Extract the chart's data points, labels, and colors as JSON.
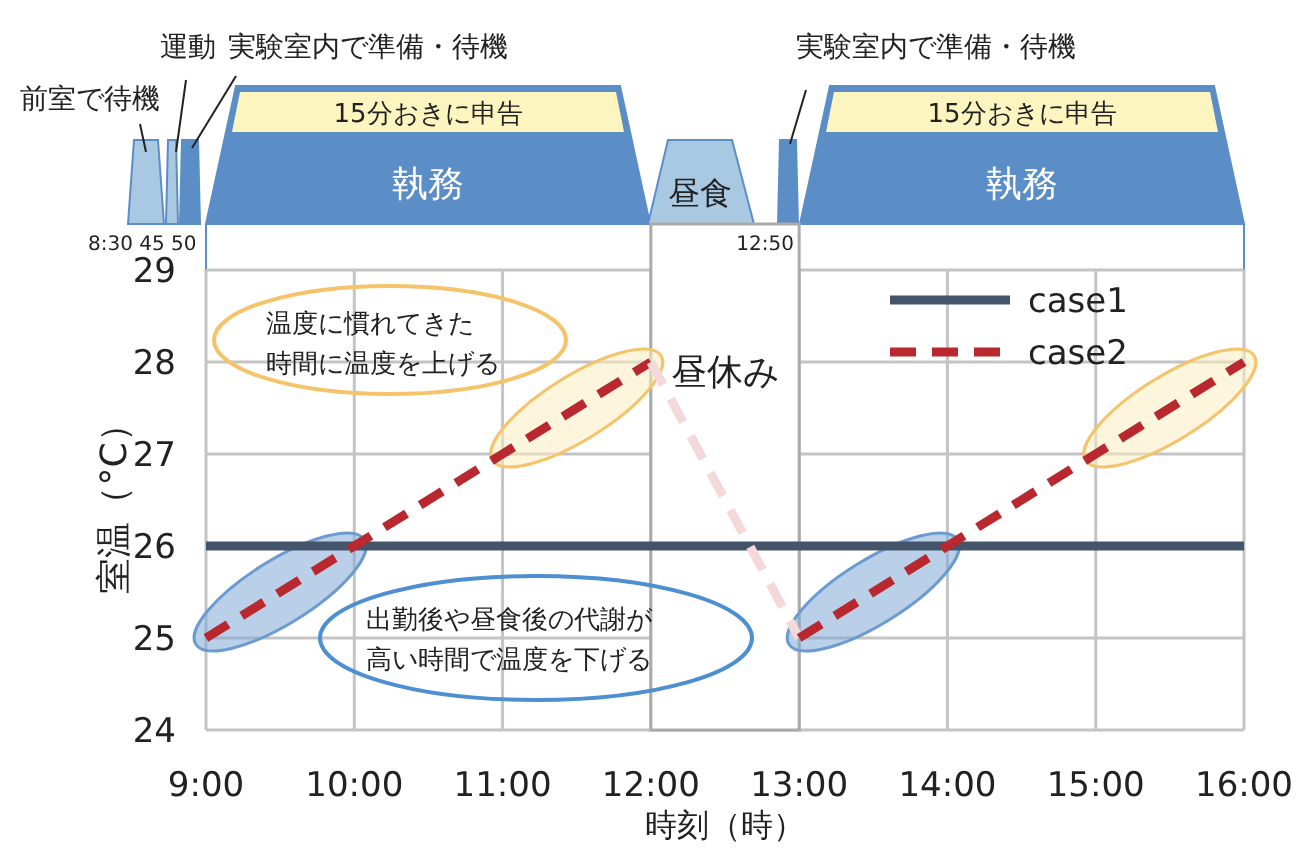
{
  "chart_data": {
    "type": "line",
    "xlabel": "時刻（時）",
    "ylabel": "室温（°C）",
    "xlim": [
      9,
      16
    ],
    "xticks": [
      {
        "value": 9,
        "label": "9:00"
      },
      {
        "value": 10,
        "label": "10:00"
      },
      {
        "value": 11,
        "label": "11:00"
      },
      {
        "value": 12,
        "label": "12:00"
      },
      {
        "value": 13,
        "label": "13:00"
      },
      {
        "value": 14,
        "label": "14:00"
      },
      {
        "value": 15,
        "label": "15:00"
      },
      {
        "value": 16,
        "label": "16:00"
      }
    ],
    "ylim": [
      24,
      29
    ],
    "yticks": [
      24,
      25,
      26,
      27,
      28,
      29
    ],
    "grid": true,
    "legend": "top right",
    "marker": "none",
    "series": [
      {
        "name": "case1",
        "color": "#44546a",
        "line_style": "solid",
        "x": [
          9,
          16
        ],
        "values": [
          26,
          26
        ]
      },
      {
        "name": "case2",
        "color": "#b8282e",
        "line_style": "dashed",
        "x": [
          9,
          10,
          11,
          12
        ],
        "values": [
          25,
          26,
          27,
          28
        ]
      },
      {
        "color": "#f5d9da",
        "line_style": "dashed",
        "x": [
          12,
          13
        ],
        "values": [
          28,
          25
        ]
      },
      {
        "color": "#b8282e",
        "line_style": "dashed",
        "x": [
          13,
          14,
          15,
          16
        ],
        "values": [
          25,
          26,
          27,
          28
        ]
      }
    ],
    "bands": [
      {
        "axis": "x",
        "from": 12,
        "to": 13,
        "label": "昼休み",
        "color": "#ffffff"
      }
    ],
    "annotations": [
      "温度に慣れてきた時間に温度を上げる",
      "出勤後や昼食後の代謝が高い時間で温度を下げる",
      "前室で待機",
      "運動",
      "実験室内で準備・待機",
      "15分おきに申告",
      "執務",
      "8:30 45 50",
      "昼食",
      "12:50",
      "実験室内で準備・待機",
      "15分おきに申告",
      "執務"
    ]
  }
}
